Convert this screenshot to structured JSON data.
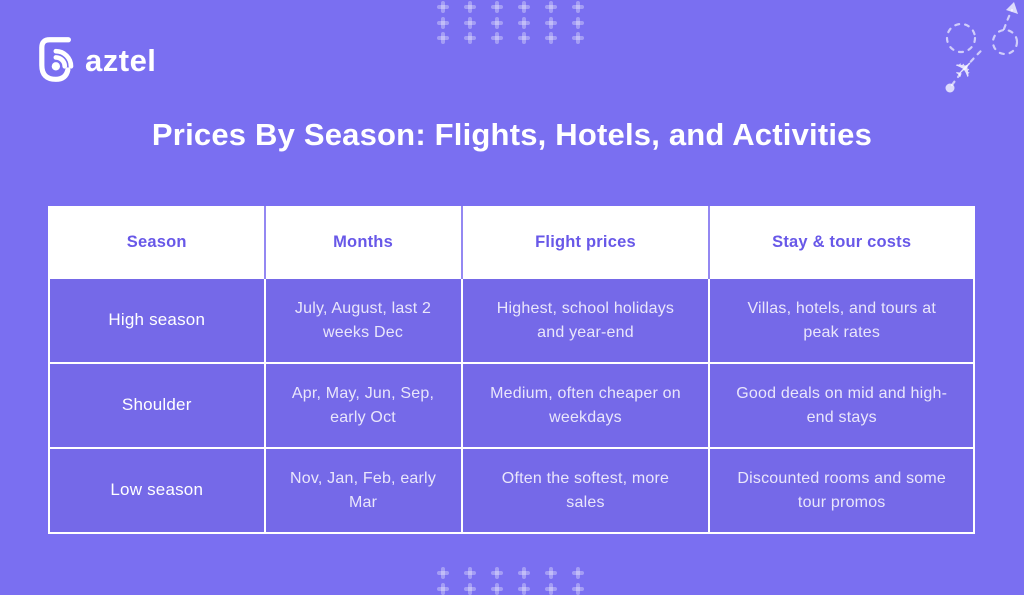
{
  "brand": {
    "name": "baztel",
    "wordmark_visible": "aztel",
    "icon": "broadcast-b-icon"
  },
  "title": "Prices By Season: Flights, Hotels, and Activities",
  "chart_data": {
    "type": "table",
    "title": "Prices By Season: Flights, Hotels, and Activities",
    "columns": [
      "Season",
      "Months",
      "Flight prices",
      "Stay & tour costs"
    ],
    "rows": [
      [
        "High season",
        "July, August, last 2 weeks Dec",
        "Highest, school holidays and year-end",
        "Villas, hotels, and tours at peak rates"
      ],
      [
        "Shoulder",
        "Apr, May, Jun, Sep, early Oct",
        "Medium, often cheaper on weekdays",
        "Good deals on mid and high-end stays"
      ],
      [
        "Low season",
        "Nov, Jan, Feb, early Mar",
        "Often the softest, more sales",
        "Discounted rooms and some tour promos"
      ]
    ],
    "layout": "header row white with violet text; body cells violet with white text; centered"
  },
  "colors": {
    "page_background": "#7A6FF1",
    "cell_background": "#7569E8",
    "header_background": "#FFFFFF",
    "header_text": "#6858E8",
    "body_text": "#E9E6FB",
    "season_text": "#FFFFFF",
    "title_text": "#FFFFFF",
    "decoration": "rgba(255,255,255,0.6)"
  },
  "decorations": {
    "plane_icon": "✈",
    "plus_grid": {
      "columns": 6,
      "top_rows": 3,
      "bottom_rows": 2,
      "col_spacing": 27,
      "row_spacing": 15.5
    }
  }
}
